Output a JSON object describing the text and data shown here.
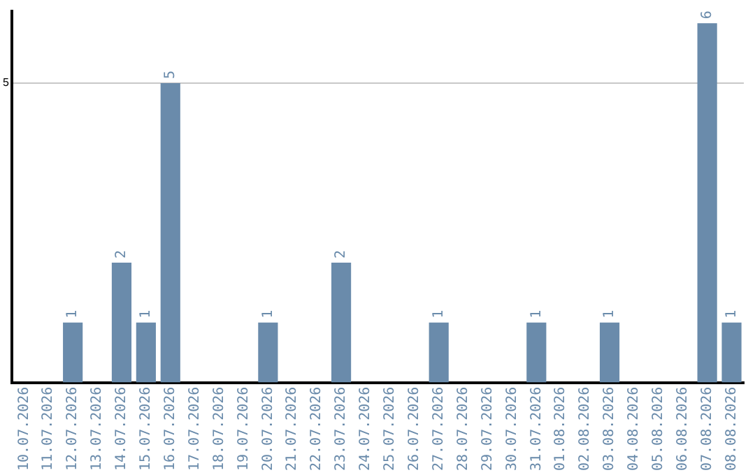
{
  "chart_data": {
    "type": "bar",
    "categories": [
      "10.07.2026",
      "11.07.2026",
      "12.07.2026",
      "13.07.2026",
      "14.07.2026",
      "15.07.2026",
      "16.07.2026",
      "17.07.2026",
      "18.07.2026",
      "19.07.2026",
      "20.07.2026",
      "21.07.2026",
      "22.07.2026",
      "23.07.2026",
      "24.07.2026",
      "25.07.2026",
      "26.07.2026",
      "27.07.2026",
      "28.07.2026",
      "29.07.2026",
      "30.07.2026",
      "31.07.2026",
      "01.08.2026",
      "02.08.2026",
      "03.08.2026",
      "04.08.2026",
      "05.08.2026",
      "06.08.2026",
      "07.08.2026",
      "08.08.2026"
    ],
    "values": [
      0,
      0,
      1,
      0,
      2,
      1,
      5,
      0,
      0,
      0,
      1,
      0,
      0,
      2,
      0,
      0,
      0,
      1,
      0,
      0,
      0,
      1,
      0,
      0,
      1,
      0,
      0,
      0,
      6,
      1
    ],
    "value_labels": [
      null,
      null,
      "1",
      null,
      "2",
      "1",
      "5",
      null,
      null,
      null,
      "1",
      null,
      null,
      "2",
      null,
      null,
      null,
      "1",
      null,
      null,
      null,
      "1",
      null,
      null,
      "1",
      null,
      null,
      null,
      "6",
      "1"
    ],
    "color": "#6a8bab",
    "ylim": [
      0,
      6.2
    ],
    "yticks": [
      5
    ],
    "grid": "y",
    "legend": false
  }
}
